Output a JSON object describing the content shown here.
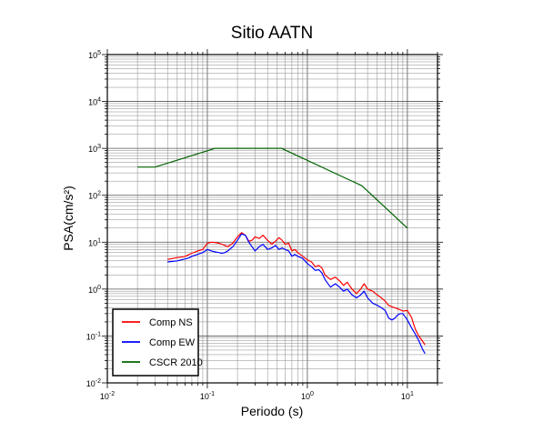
{
  "chart_data": {
    "type": "line",
    "title": "Sitio AATN",
    "xlabel": "Periodo (s)",
    "ylabel": "PSA(cm/s²)",
    "x_scale": "log",
    "y_scale": "log",
    "xlim": [
      0.01,
      20
    ],
    "ylim": [
      0.01,
      100000
    ],
    "grid": true,
    "legend_position": "bottom-left",
    "x_ticks": [
      {
        "base": "10",
        "exp": "-2"
      },
      {
        "base": "10",
        "exp": "-1"
      },
      {
        "base": "10",
        "exp": "0"
      },
      {
        "base": "10",
        "exp": "1"
      }
    ],
    "y_ticks": [
      {
        "base": "10",
        "exp": "-2"
      },
      {
        "base": "10",
        "exp": "-1"
      },
      {
        "base": "10",
        "exp": "0"
      },
      {
        "base": "10",
        "exp": "1"
      },
      {
        "base": "10",
        "exp": "2"
      },
      {
        "base": "10",
        "exp": "3"
      },
      {
        "base": "10",
        "exp": "4"
      },
      {
        "base": "10",
        "exp": "5"
      }
    ],
    "series": [
      {
        "name": "Comp NS",
        "color": "#ff0000",
        "x": [
          0.04,
          0.045,
          0.05,
          0.055,
          0.06,
          0.065,
          0.07,
          0.08,
          0.09,
          0.1,
          0.11,
          0.12,
          0.13,
          0.14,
          0.15,
          0.16,
          0.18,
          0.2,
          0.22,
          0.24,
          0.26,
          0.28,
          0.3,
          0.33,
          0.36,
          0.4,
          0.44,
          0.48,
          0.52,
          0.56,
          0.6,
          0.65,
          0.7,
          0.75,
          0.8,
          0.9,
          1.0,
          1.1,
          1.2,
          1.3,
          1.4,
          1.5,
          1.7,
          1.9,
          2.1,
          2.3,
          2.5,
          2.8,
          3.1,
          3.4,
          3.7,
          4.0,
          4.5,
          5.0,
          5.5,
          6.0,
          6.5,
          7.0,
          7.5,
          8.0,
          8.5,
          9.0,
          10.0,
          11.0,
          12.0,
          13.0,
          14.0,
          15.0
        ],
        "y": [
          4.3,
          4.5,
          4.7,
          4.8,
          5.0,
          5.4,
          5.8,
          6.5,
          7.0,
          9.5,
          10.0,
          9.8,
          9.5,
          9.0,
          8.5,
          8.0,
          9.5,
          13.0,
          16.0,
          14.0,
          10.5,
          11.0,
          13.0,
          12.0,
          14.0,
          11.0,
          9.0,
          10.5,
          12.5,
          11.0,
          9.0,
          9.5,
          6.5,
          7.0,
          6.0,
          5.0,
          4.2,
          3.8,
          3.0,
          3.2,
          2.8,
          2.0,
          1.6,
          1.8,
          1.5,
          1.2,
          1.4,
          1.0,
          0.8,
          1.0,
          1.3,
          1.0,
          0.9,
          0.75,
          0.65,
          0.55,
          0.45,
          0.42,
          0.4,
          0.38,
          0.36,
          0.34,
          0.35,
          0.25,
          0.14,
          0.1,
          0.08,
          0.065
        ]
      },
      {
        "name": "Comp EW",
        "color": "#0000ff",
        "x": [
          0.04,
          0.045,
          0.05,
          0.055,
          0.06,
          0.065,
          0.07,
          0.08,
          0.09,
          0.1,
          0.11,
          0.12,
          0.13,
          0.14,
          0.15,
          0.16,
          0.18,
          0.2,
          0.22,
          0.24,
          0.26,
          0.28,
          0.3,
          0.33,
          0.36,
          0.4,
          0.44,
          0.48,
          0.52,
          0.56,
          0.6,
          0.65,
          0.7,
          0.75,
          0.8,
          0.9,
          1.0,
          1.1,
          1.2,
          1.3,
          1.4,
          1.5,
          1.7,
          1.9,
          2.1,
          2.3,
          2.5,
          2.8,
          3.1,
          3.4,
          3.7,
          4.0,
          4.5,
          5.0,
          5.5,
          6.0,
          6.5,
          7.0,
          7.5,
          8.0,
          8.5,
          9.0,
          10.0,
          11.0,
          12.0,
          13.0,
          14.0,
          15.0
        ],
        "y": [
          3.8,
          3.9,
          4.0,
          4.2,
          4.4,
          4.6,
          5.0,
          5.5,
          6.0,
          7.0,
          6.5,
          6.2,
          6.0,
          5.8,
          6.0,
          6.5,
          8.0,
          11.0,
          15.0,
          14.0,
          10.0,
          8.0,
          6.5,
          8.0,
          9.0,
          7.0,
          7.5,
          8.5,
          7.0,
          7.5,
          7.0,
          6.5,
          5.0,
          5.5,
          5.0,
          4.5,
          3.5,
          3.0,
          2.5,
          2.6,
          2.2,
          1.6,
          1.1,
          1.3,
          1.1,
          0.9,
          1.0,
          0.75,
          0.65,
          0.75,
          0.9,
          0.65,
          0.5,
          0.45,
          0.4,
          0.35,
          0.24,
          0.22,
          0.24,
          0.28,
          0.3,
          0.3,
          0.22,
          0.15,
          0.11,
          0.08,
          0.055,
          0.042
        ]
      },
      {
        "name": "CSCR 2010",
        "color": "#006400",
        "x": [
          0.02,
          0.03,
          0.12,
          0.55,
          3.5,
          10.0
        ],
        "y": [
          400,
          400,
          1000,
          1000,
          160,
          20
        ]
      }
    ]
  }
}
